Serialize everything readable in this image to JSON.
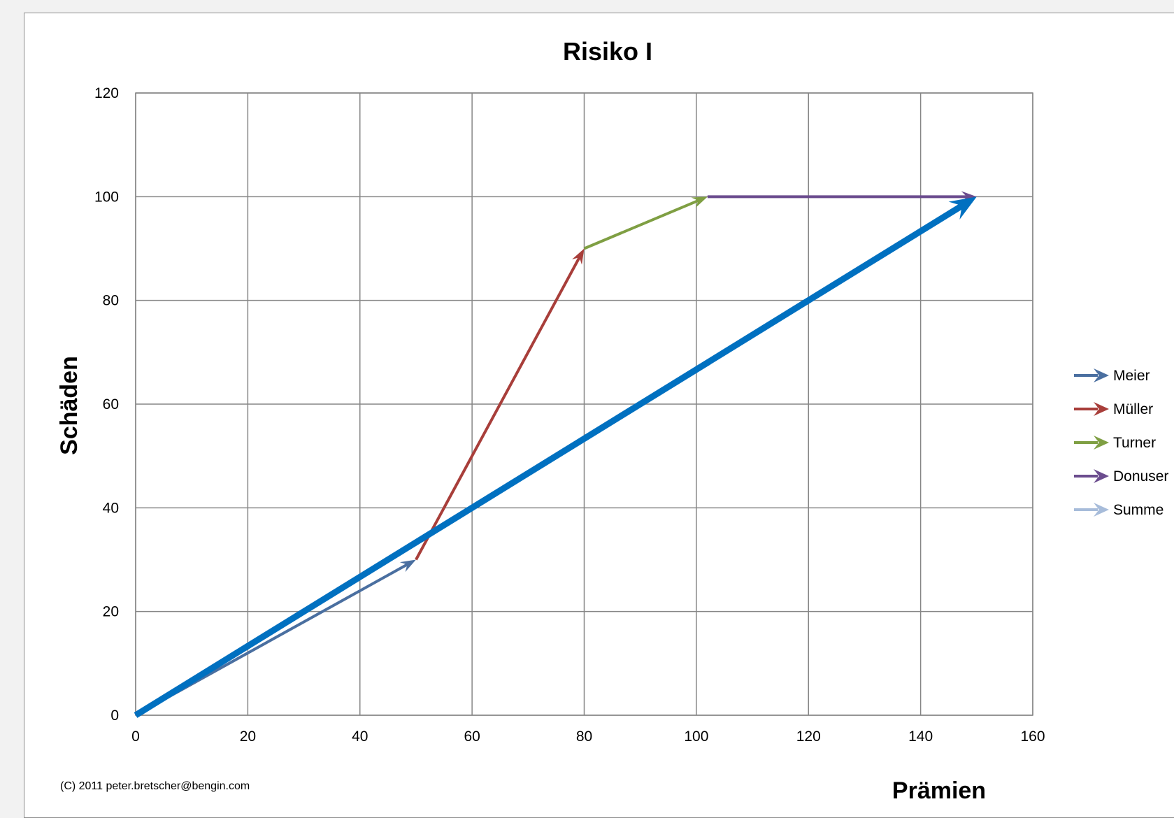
{
  "chart_data": {
    "type": "line",
    "title": "Risiko I",
    "xlabel": "Prämien",
    "ylabel": "Schäden",
    "xlim": [
      0,
      160
    ],
    "ylim": [
      0,
      120
    ],
    "x_ticks": [
      "0",
      "20",
      "40",
      "60",
      "80",
      "100",
      "120",
      "140",
      "160"
    ],
    "y_ticks": [
      "0",
      "20",
      "40",
      "60",
      "80",
      "100",
      "120"
    ],
    "grid": true,
    "legend_position": "right",
    "series": [
      {
        "name": "Meier",
        "color": "#4a6fa0",
        "x": [
          0,
          50
        ],
        "y": [
          0,
          30
        ]
      },
      {
        "name": "Müller",
        "color": "#a83e3a",
        "x": [
          50,
          80
        ],
        "y": [
          30,
          90
        ]
      },
      {
        "name": "Turner",
        "color": "#7f9f43",
        "x": [
          80,
          102
        ],
        "y": [
          90,
          100
        ]
      },
      {
        "name": "Donuser",
        "color": "#6b4c8e",
        "x": [
          102,
          150
        ],
        "y": [
          100,
          100
        ]
      },
      {
        "name": "Summe",
        "color": "#0070c0",
        "legend_color": "#a7bcda",
        "x": [
          0,
          150
        ],
        "y": [
          0,
          100
        ]
      }
    ]
  },
  "credit": "(C) 2011 peter.bretscher@bengin.com"
}
